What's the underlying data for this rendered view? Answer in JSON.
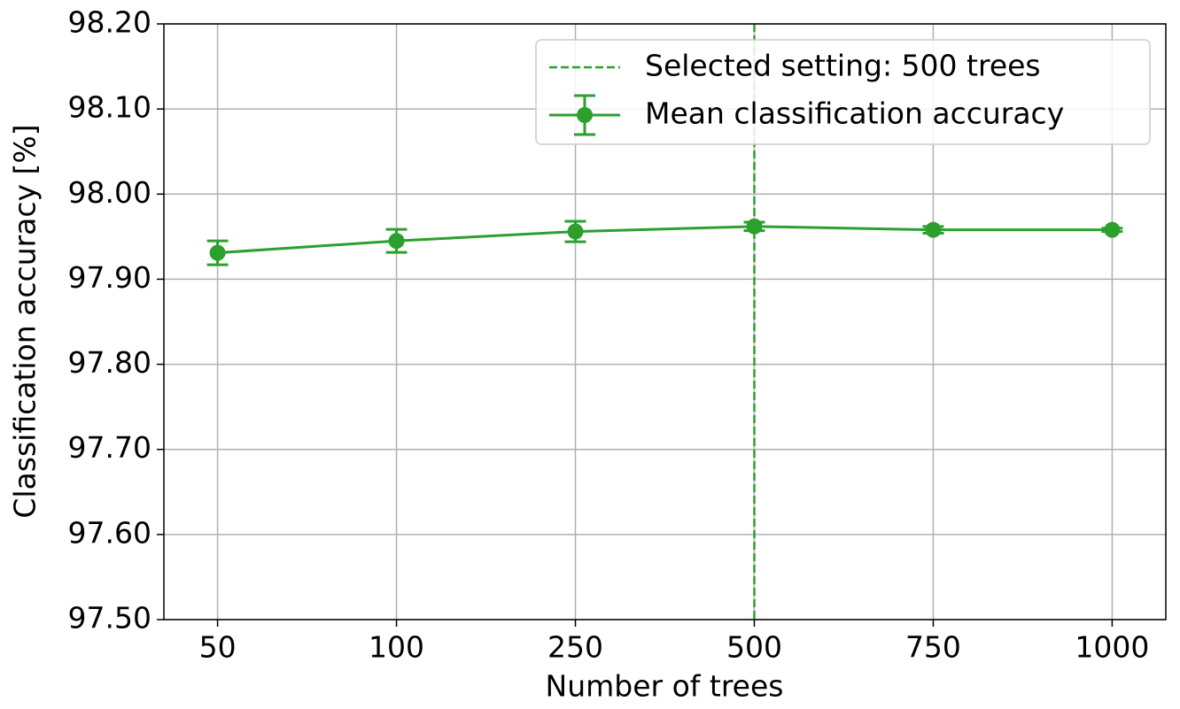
{
  "chart_data": {
    "type": "line",
    "x_label": "Number of trees",
    "y_label": "Classification accuracy [%]",
    "categories": [
      "50",
      "100",
      "250",
      "500",
      "750",
      "1000"
    ],
    "series": [
      {
        "name": "Mean classification accuracy",
        "color": "#2ca02c",
        "values": [
          97.931,
          97.945,
          97.956,
          97.962,
          97.958,
          97.958
        ],
        "errors": [
          0.014,
          0.0135,
          0.012,
          0.005,
          0.004,
          0.002
        ]
      }
    ],
    "vline": {
      "category": "500",
      "label": "Selected setting: 500 trees",
      "color": "#2ca02c"
    },
    "ylim": [
      97.5,
      98.2
    ],
    "yticks": [
      {
        "value": 97.5,
        "label": "97.50"
      },
      {
        "value": 97.6,
        "label": "97.60"
      },
      {
        "value": 97.7,
        "label": "97.70"
      },
      {
        "value": 97.8,
        "label": "97.80"
      },
      {
        "value": 97.9,
        "label": "97.90"
      },
      {
        "value": 98.0,
        "label": "98.00"
      },
      {
        "value": 98.1,
        "label": "98.10"
      },
      {
        "value": 98.2,
        "label": "98.20"
      }
    ],
    "grid": true,
    "legend": "upper right"
  }
}
